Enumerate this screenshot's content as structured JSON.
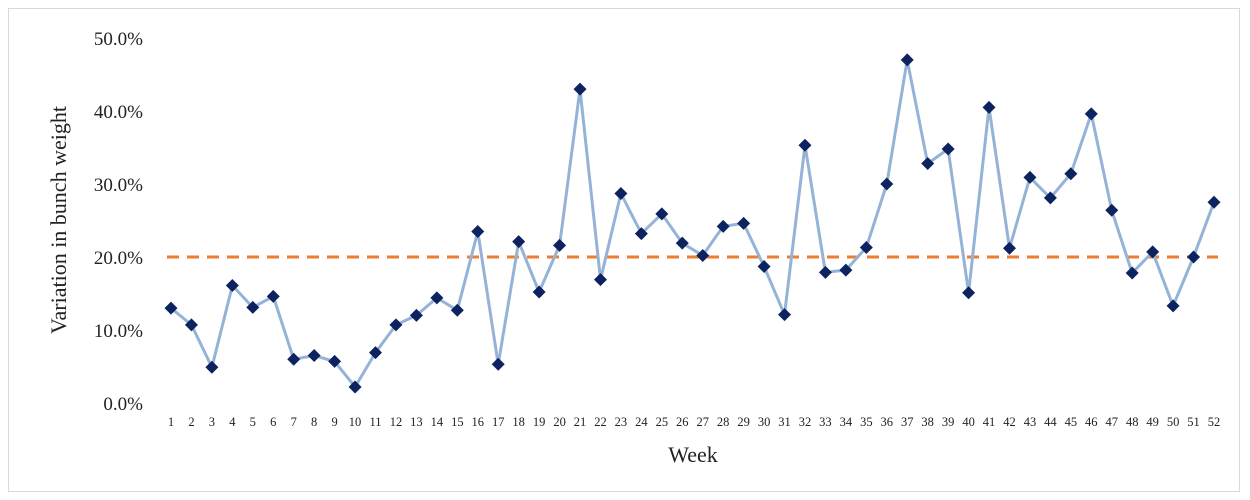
{
  "chart_data": {
    "type": "line",
    "xlabel": "Week",
    "ylabel": "Variation in bunch weight",
    "ylim": [
      0,
      0.5
    ],
    "yticks": [
      0.0,
      0.1,
      0.2,
      0.3,
      0.4,
      0.5
    ],
    "ytick_labels": [
      "0.0%",
      "10.0%",
      "20.0%",
      "30.0%",
      "40.0%",
      "50.0%"
    ],
    "grid": false,
    "legend": "none",
    "categories": [
      "1",
      "2",
      "3",
      "4",
      "5",
      "6",
      "7",
      "8",
      "9",
      "10",
      "11",
      "12",
      "13",
      "14",
      "15",
      "16",
      "17",
      "18",
      "19",
      "20",
      "21",
      "22",
      "23",
      "24",
      "25",
      "26",
      "27",
      "28",
      "29",
      "30",
      "31",
      "32",
      "33",
      "34",
      "35",
      "36",
      "37",
      "38",
      "39",
      "40",
      "41",
      "42",
      "43",
      "44",
      "45",
      "46",
      "47",
      "48",
      "49",
      "50",
      "51",
      "52"
    ],
    "series": [
      {
        "color": "#95b3d7",
        "marker": "diamond",
        "marker_color": "#0d2360",
        "values": [
          0.13,
          0.107,
          0.049,
          0.161,
          0.131,
          0.146,
          0.06,
          0.065,
          0.057,
          0.022,
          0.069,
          0.107,
          0.12,
          0.144,
          0.127,
          0.235,
          0.053,
          0.221,
          0.152,
          0.216,
          0.43,
          0.169,
          0.287,
          0.232,
          0.259,
          0.219,
          0.202,
          0.242,
          0.246,
          0.187,
          0.121,
          0.353,
          0.179,
          0.182,
          0.213,
          0.3,
          0.47,
          0.328,
          0.348,
          0.151,
          0.405,
          0.212,
          0.309,
          0.281,
          0.314,
          0.396,
          0.264,
          0.178,
          0.207,
          0.133,
          0.2,
          0.275
        ]
      }
    ],
    "reference_line": {
      "value": 0.2,
      "color": "#ed7d31",
      "style": "dashed"
    }
  }
}
